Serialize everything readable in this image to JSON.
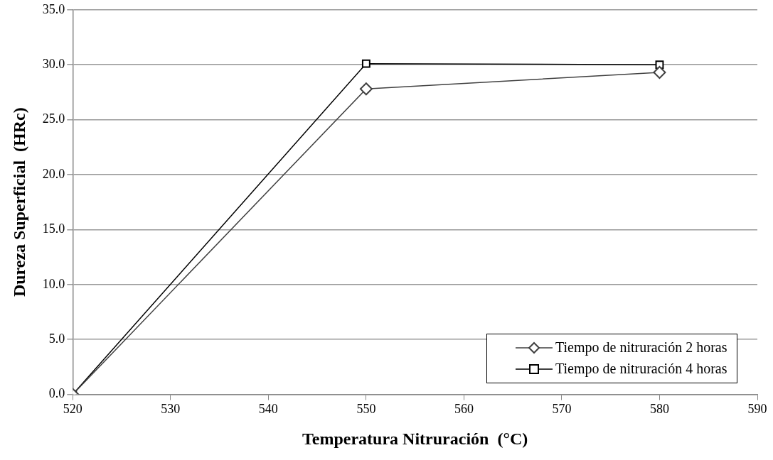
{
  "chart_data": {
    "type": "line",
    "xlabel": "Temperatura Nitruración  (°C)",
    "ylabel": "Dureza Superficial  (HRc)",
    "x": [
      520,
      550,
      580
    ],
    "series": [
      {
        "name": "Tiempo de nitruración 2 horas",
        "color": "#404040",
        "marker": "diamond",
        "values": [
          0,
          27.8,
          29.3
        ]
      },
      {
        "name": "Tiempo de nitruración 4 horas",
        "color": "#000000",
        "marker": "square",
        "values": [
          0,
          30.1,
          30.0
        ]
      }
    ],
    "xlim": [
      520,
      590
    ],
    "xticks": [
      520,
      530,
      540,
      550,
      560,
      570,
      580,
      590
    ],
    "ylim": [
      0,
      35
    ],
    "yticks": [
      {
        "value": 0,
        "label": "0.0"
      },
      {
        "value": 5,
        "label": "5.0"
      },
      {
        "value": 10,
        "label": "10.0"
      },
      {
        "value": 15,
        "label": "15.0"
      },
      {
        "value": 20,
        "label": "20.0"
      },
      {
        "value": 25,
        "label": "25.0"
      },
      {
        "value": 30,
        "label": "30.0"
      },
      {
        "value": 35,
        "label": "35.0"
      }
    ],
    "grid": "y",
    "legend": "bottom right"
  }
}
